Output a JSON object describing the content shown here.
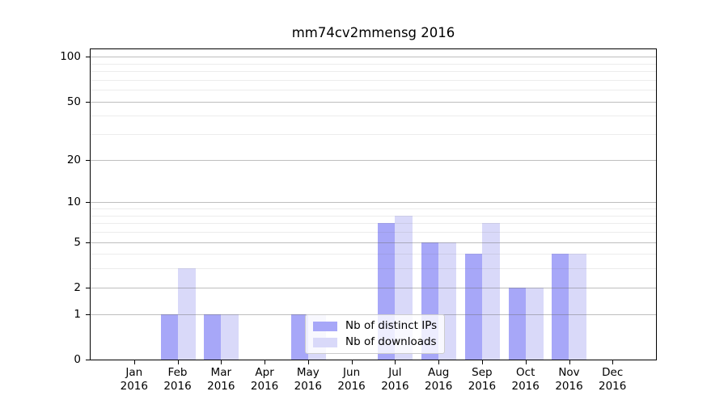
{
  "chart_data": {
    "type": "bar",
    "title": "mm74cv2mmensg 2016",
    "categories": [
      "Jan 2016",
      "Feb 2016",
      "Mar 2016",
      "Apr 2016",
      "May 2016",
      "Jun 2016",
      "Jul 2016",
      "Aug 2016",
      "Sep 2016",
      "Oct 2016",
      "Nov 2016",
      "Dec 2016"
    ],
    "series": [
      {
        "name": "Nb of distinct IPs",
        "color": "#a7a7f8",
        "values": [
          0,
          1,
          1,
          0,
          1,
          0,
          7,
          5,
          4,
          2,
          4,
          0
        ]
      },
      {
        "name": "Nb of downloads",
        "color": "#d9d9f9",
        "values": [
          0,
          3,
          1,
          0,
          1,
          0,
          8,
          5,
          7,
          2,
          4,
          0
        ]
      }
    ],
    "xlabel": "",
    "ylabel": "",
    "yscale": "log1p",
    "ylim": [
      0,
      112
    ],
    "yticks": [
      0,
      1,
      2,
      5,
      10,
      20,
      50,
      100
    ],
    "minor_gridlines": [
      3,
      4,
      6,
      7,
      8,
      9,
      30,
      40,
      60,
      70,
      80,
      90
    ],
    "grid": true,
    "legend_position": "lower center-right"
  },
  "colors": {
    "bar_dark": "#a7a7f8",
    "bar_light": "#d9d9f9",
    "grid_major": "rgba(110,110,110,0.45)",
    "grid_minor": "rgba(110,110,110,0.13)",
    "axis": "#000000",
    "legend_border": "#cccccc"
  }
}
